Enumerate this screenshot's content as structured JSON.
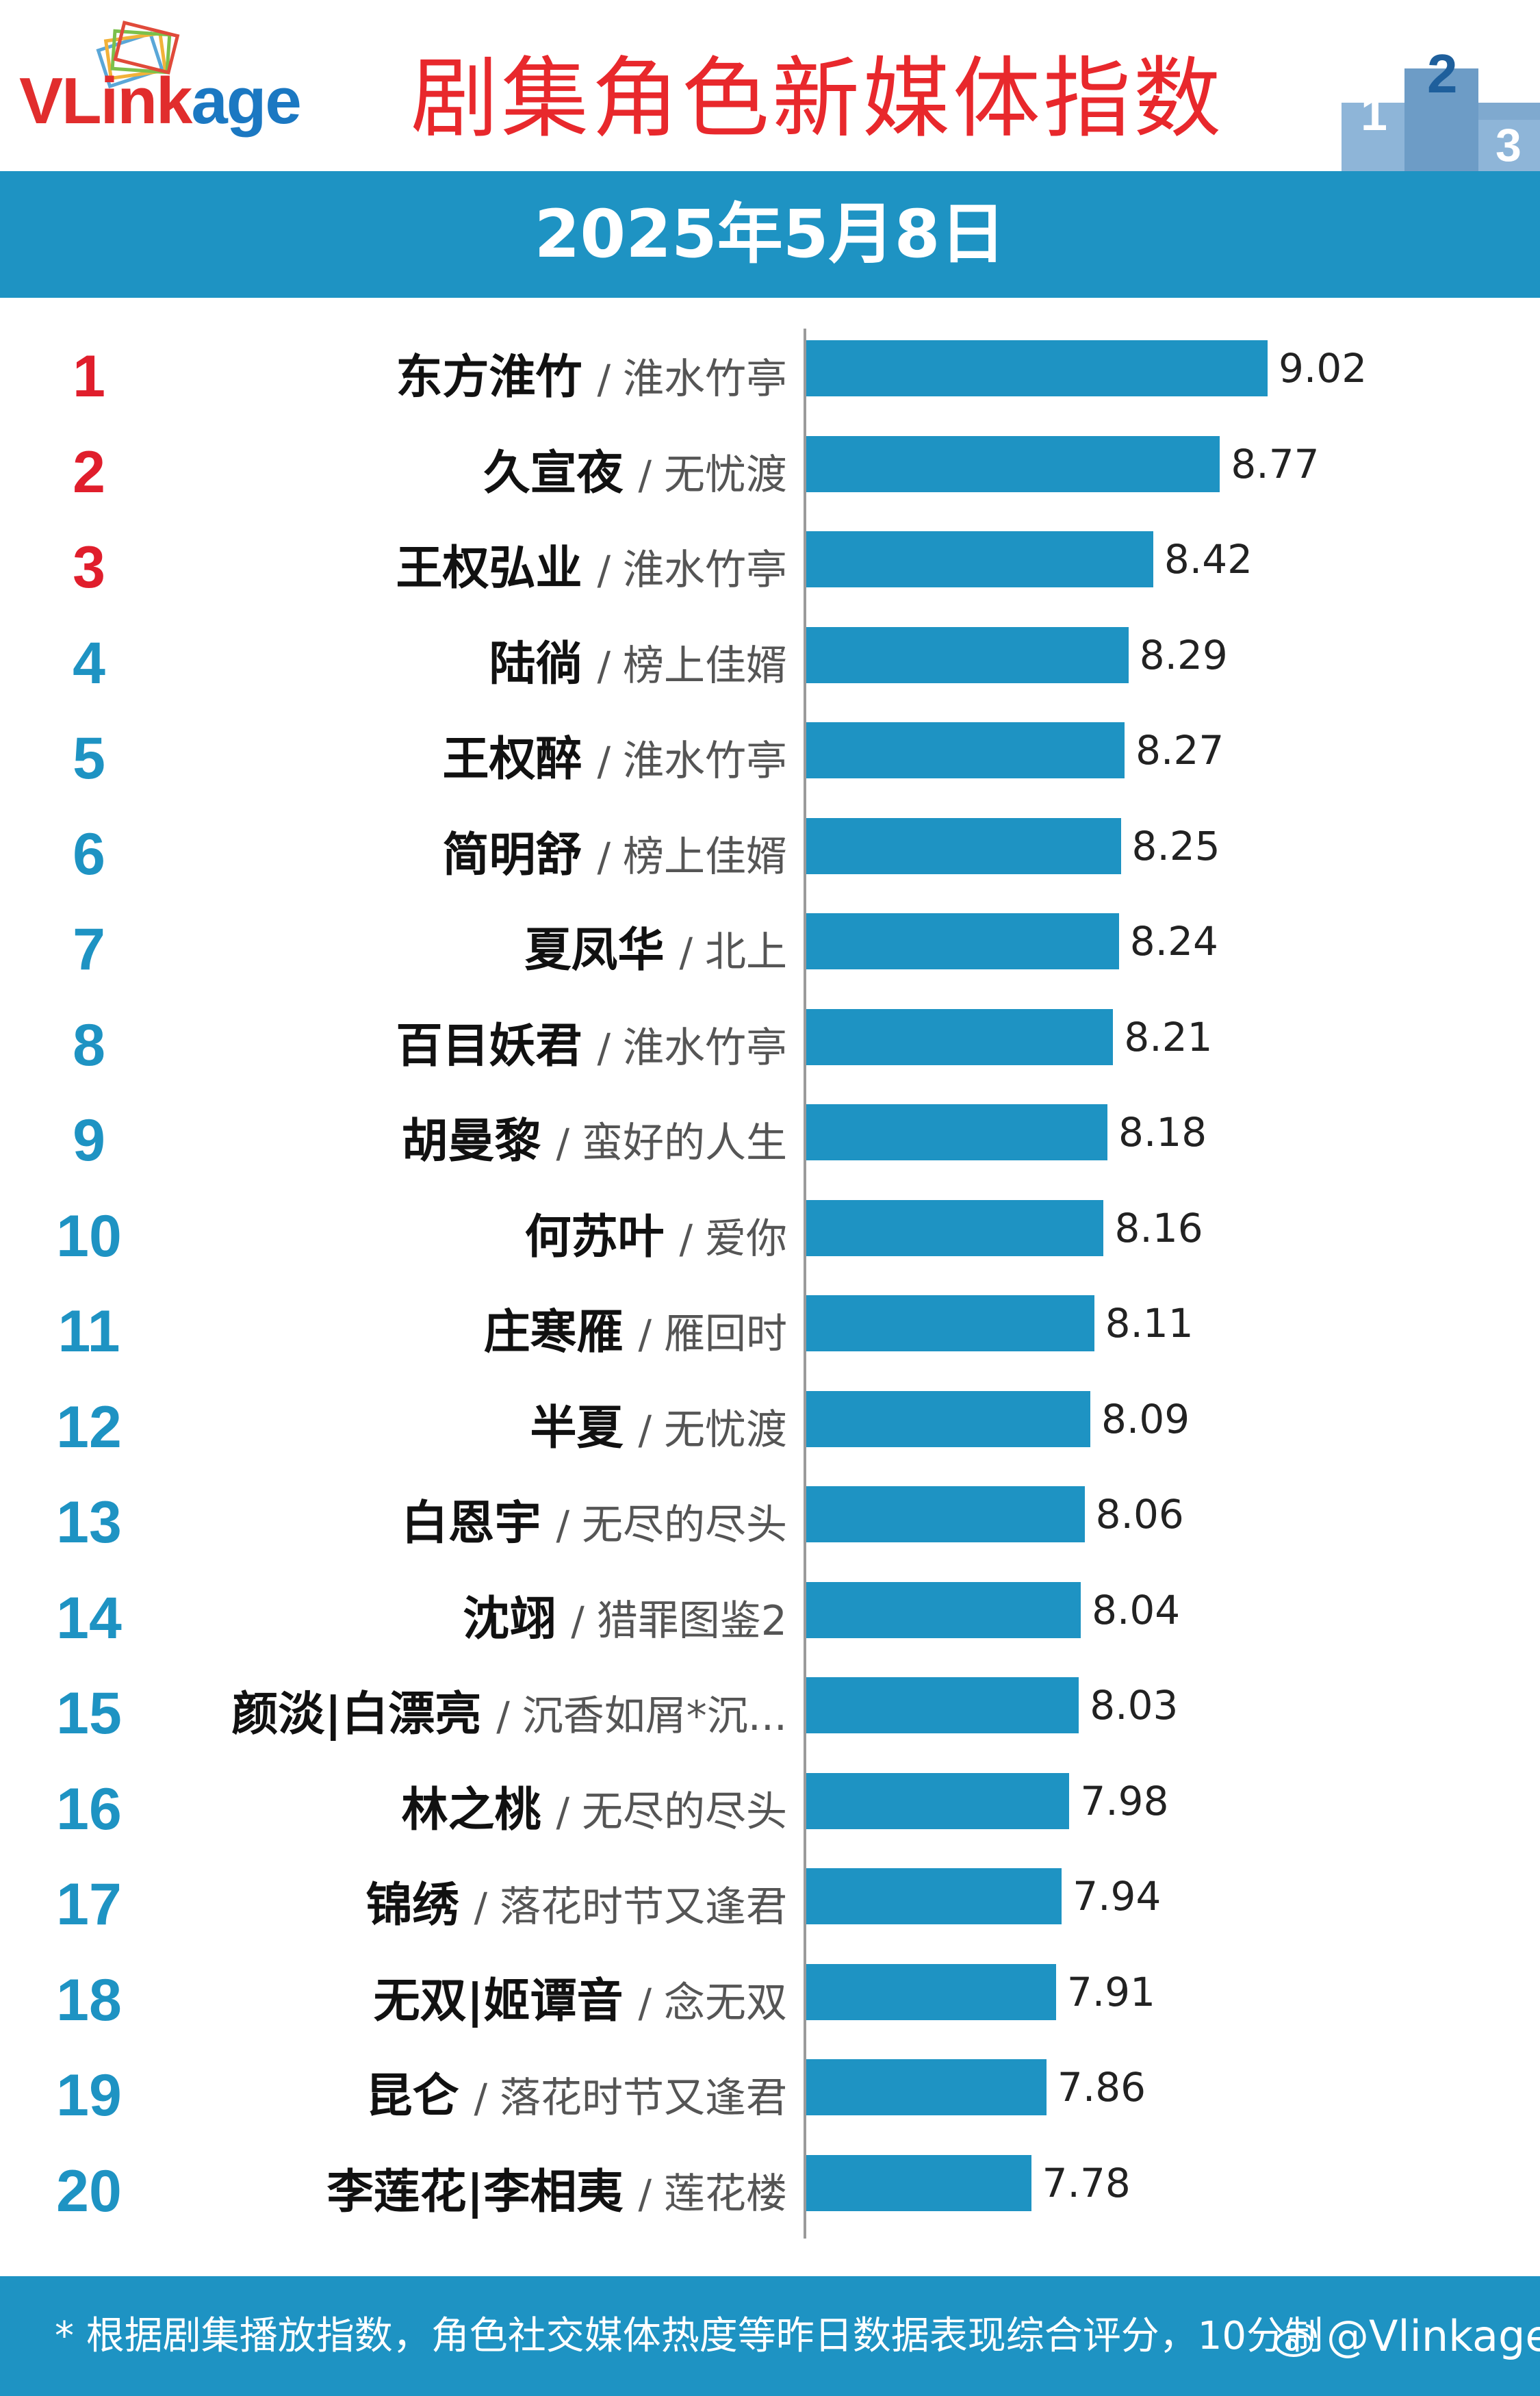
{
  "header": {
    "logo_text_v": "V",
    "logo_text_rest": "Link",
    "logo_text_end": "age",
    "logo_icon": "stacked-cards-logo-icon",
    "title": "剧集角色新媒体指数",
    "podium_icon": "podium-123-icon",
    "podium_digits": [
      "2",
      "1",
      "3"
    ]
  },
  "date": "2025年5月8日",
  "colors": {
    "accent": "#1e93c3",
    "title_red": "#e8282c",
    "rank_top3": "#e01e2c",
    "rank_other": "#1e93c3"
  },
  "chart_data": {
    "type": "bar",
    "orientation": "horizontal",
    "title": "剧集角色新媒体指数",
    "subtitle": "2025年5月8日",
    "xlim": [
      6.6,
      9.3
    ],
    "separator": "/",
    "rows": [
      {
        "rank": "1",
        "name": "东方淮竹",
        "drama": "淮水竹亭",
        "value": 9.02,
        "value_label": "9.02"
      },
      {
        "rank": "2",
        "name": "久宣夜",
        "drama": "无忧渡",
        "value": 8.77,
        "value_label": "8.77"
      },
      {
        "rank": "3",
        "name": "王权弘业",
        "drama": "淮水竹亭",
        "value": 8.42,
        "value_label": "8.42"
      },
      {
        "rank": "4",
        "name": "陆徜",
        "drama": "榜上佳婿",
        "value": 8.29,
        "value_label": "8.29"
      },
      {
        "rank": "5",
        "name": "王权醉",
        "drama": "淮水竹亭",
        "value": 8.27,
        "value_label": "8.27"
      },
      {
        "rank": "6",
        "name": "简明舒",
        "drama": "榜上佳婿",
        "value": 8.25,
        "value_label": "8.25"
      },
      {
        "rank": "7",
        "name": "夏凤华",
        "drama": "北上",
        "value": 8.24,
        "value_label": "8.24"
      },
      {
        "rank": "8",
        "name": "百目妖君",
        "drama": "淮水竹亭",
        "value": 8.21,
        "value_label": "8.21"
      },
      {
        "rank": "9",
        "name": "胡曼黎",
        "drama": "蛮好的人生",
        "value": 8.18,
        "value_label": "8.18"
      },
      {
        "rank": "10",
        "name": "何苏叶",
        "drama": "爱你",
        "value": 8.16,
        "value_label": "8.16"
      },
      {
        "rank": "11",
        "name": "庄寒雁",
        "drama": "雁回时",
        "value": 8.11,
        "value_label": "8.11"
      },
      {
        "rank": "12",
        "name": "半夏",
        "drama": "无忧渡",
        "value": 8.09,
        "value_label": "8.09"
      },
      {
        "rank": "13",
        "name": "白恩宇",
        "drama": "无尽的尽头",
        "value": 8.06,
        "value_label": "8.06"
      },
      {
        "rank": "14",
        "name": "沈翊",
        "drama": "猎罪图鉴2",
        "value": 8.04,
        "value_label": "8.04"
      },
      {
        "rank": "15",
        "name": "颜淡|白漂亮",
        "drama": "沉香如屑*沉...",
        "value": 8.03,
        "value_label": "8.03"
      },
      {
        "rank": "16",
        "name": "林之桃",
        "drama": "无尽的尽头",
        "value": 7.98,
        "value_label": "7.98"
      },
      {
        "rank": "17",
        "name": "锦绣",
        "drama": "落花时节又逢君",
        "value": 7.94,
        "value_label": "7.94"
      },
      {
        "rank": "18",
        "name": "无双|姬谭音",
        "drama": "念无双",
        "value": 7.91,
        "value_label": "7.91"
      },
      {
        "rank": "19",
        "name": "昆仑",
        "drama": "落花时节又逢君",
        "value": 7.86,
        "value_label": "7.86"
      },
      {
        "rank": "20",
        "name": "李莲花|李相夷",
        "drama": "莲花楼",
        "value": 7.78,
        "value_label": "7.78"
      }
    ]
  },
  "footer": {
    "note": "* 根据剧集播放指数，角色社交媒体热度等昨日数据表现综合评分，10分制",
    "watermark": "@Vlinkage",
    "watermark_icon": "weibo-icon"
  }
}
